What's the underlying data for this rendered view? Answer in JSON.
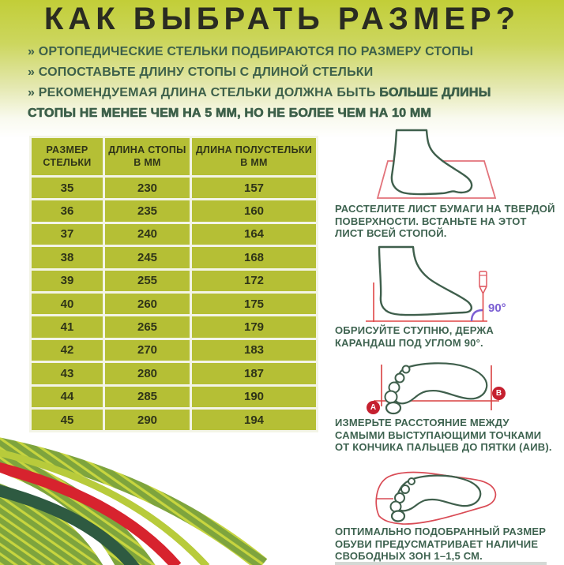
{
  "title": "КАК ВЫБРАТЬ РАЗМЕР?",
  "bullets": [
    {
      "marker": "»",
      "text": "ОРТОПЕДИЧЕСКИЕ СТЕЛЬКИ ПОДБИРАЮТСЯ ПО РАЗМЕРУ СТОПЫ"
    },
    {
      "marker": "»",
      "text": "СОПОСТАВЬТЕ ДЛИНУ СТОПЫ С ДЛИНОЙ СТЕЛЬКИ"
    },
    {
      "marker": "»",
      "text": "РЕКОМЕНДУЕМАЯ ДЛИНА СТЕЛЬКИ ДОЛЖНА БЫТЬ ",
      "bold_text": "БОЛЬШЕ ДЛИНЫ СТОПЫ НЕ МЕНЕЕ ЧЕМ НА 5 ММ, НО НЕ БОЛЕЕ ЧЕМ НА 10 ММ"
    }
  ],
  "size_table": {
    "headers": [
      "РАЗМЕР СТЕЛЬКИ",
      "ДЛИНА СТОПЫ В ММ",
      "ДЛИНА ПОЛУСТЕЛЬКИ В ММ"
    ],
    "rows": [
      [
        "35",
        "230",
        "157"
      ],
      [
        "36",
        "235",
        "160"
      ],
      [
        "37",
        "240",
        "164"
      ],
      [
        "38",
        "245",
        "168"
      ],
      [
        "39",
        "255",
        "172"
      ],
      [
        "40",
        "260",
        "175"
      ],
      [
        "41",
        "265",
        "179"
      ],
      [
        "42",
        "270",
        "183"
      ],
      [
        "43",
        "280",
        "187"
      ],
      [
        "44",
        "285",
        "190"
      ],
      [
        "45",
        "290",
        "194"
      ]
    ]
  },
  "instructions": [
    {
      "illustration": "foot-on-paper",
      "caption": "РАССТЕЛИТЕ ЛИСТ БУМАГИ НА ТВЕРДОЙ ПОВЕРХНОСТИ. ВСТАНЬТЕ НА ЭТОТ ЛИСТ ВСЕЙ СТОПОЙ."
    },
    {
      "illustration": "foot-with-pencil",
      "angle_label": "90°",
      "caption": "ОБРИСУЙТЕ СТУПНЮ, ДЕРЖА КАРАНДАШ ПОД УГЛОМ 90°."
    },
    {
      "illustration": "footprint-measure",
      "point_a": "А",
      "point_b": "В",
      "caption": "ИЗМЕРЬТЕ РАССТОЯНИЕ МЕЖДУ САМЫМИ ВЫСТУПАЮЩИМИ ТОЧКАМИ ОТ КОНЧИКА ПАЛЬЦЕВ ДО ПЯТКИ (АИВ)."
    },
    {
      "illustration": "footprint-in-insole",
      "caption": "ОПТИМАЛЬНО ПОДОБРАННЫЙ РАЗМЕР ОБУВИ ПРЕДУСМАТРИВАЕТ НАЛИЧИЕ СВОБОДНЫХ ЗОН 1–1,5 СМ."
    }
  ],
  "colors": {
    "background_top": "#c2ce38",
    "table_green": "#b5bf35",
    "text_dark_green": "#3d604a",
    "title": "#2a2b21",
    "outline_green": "#3f5f4c",
    "red_accent": "#d7232e",
    "pink_paper": "#e2737b",
    "purple_accent": "#7b5fd3"
  }
}
